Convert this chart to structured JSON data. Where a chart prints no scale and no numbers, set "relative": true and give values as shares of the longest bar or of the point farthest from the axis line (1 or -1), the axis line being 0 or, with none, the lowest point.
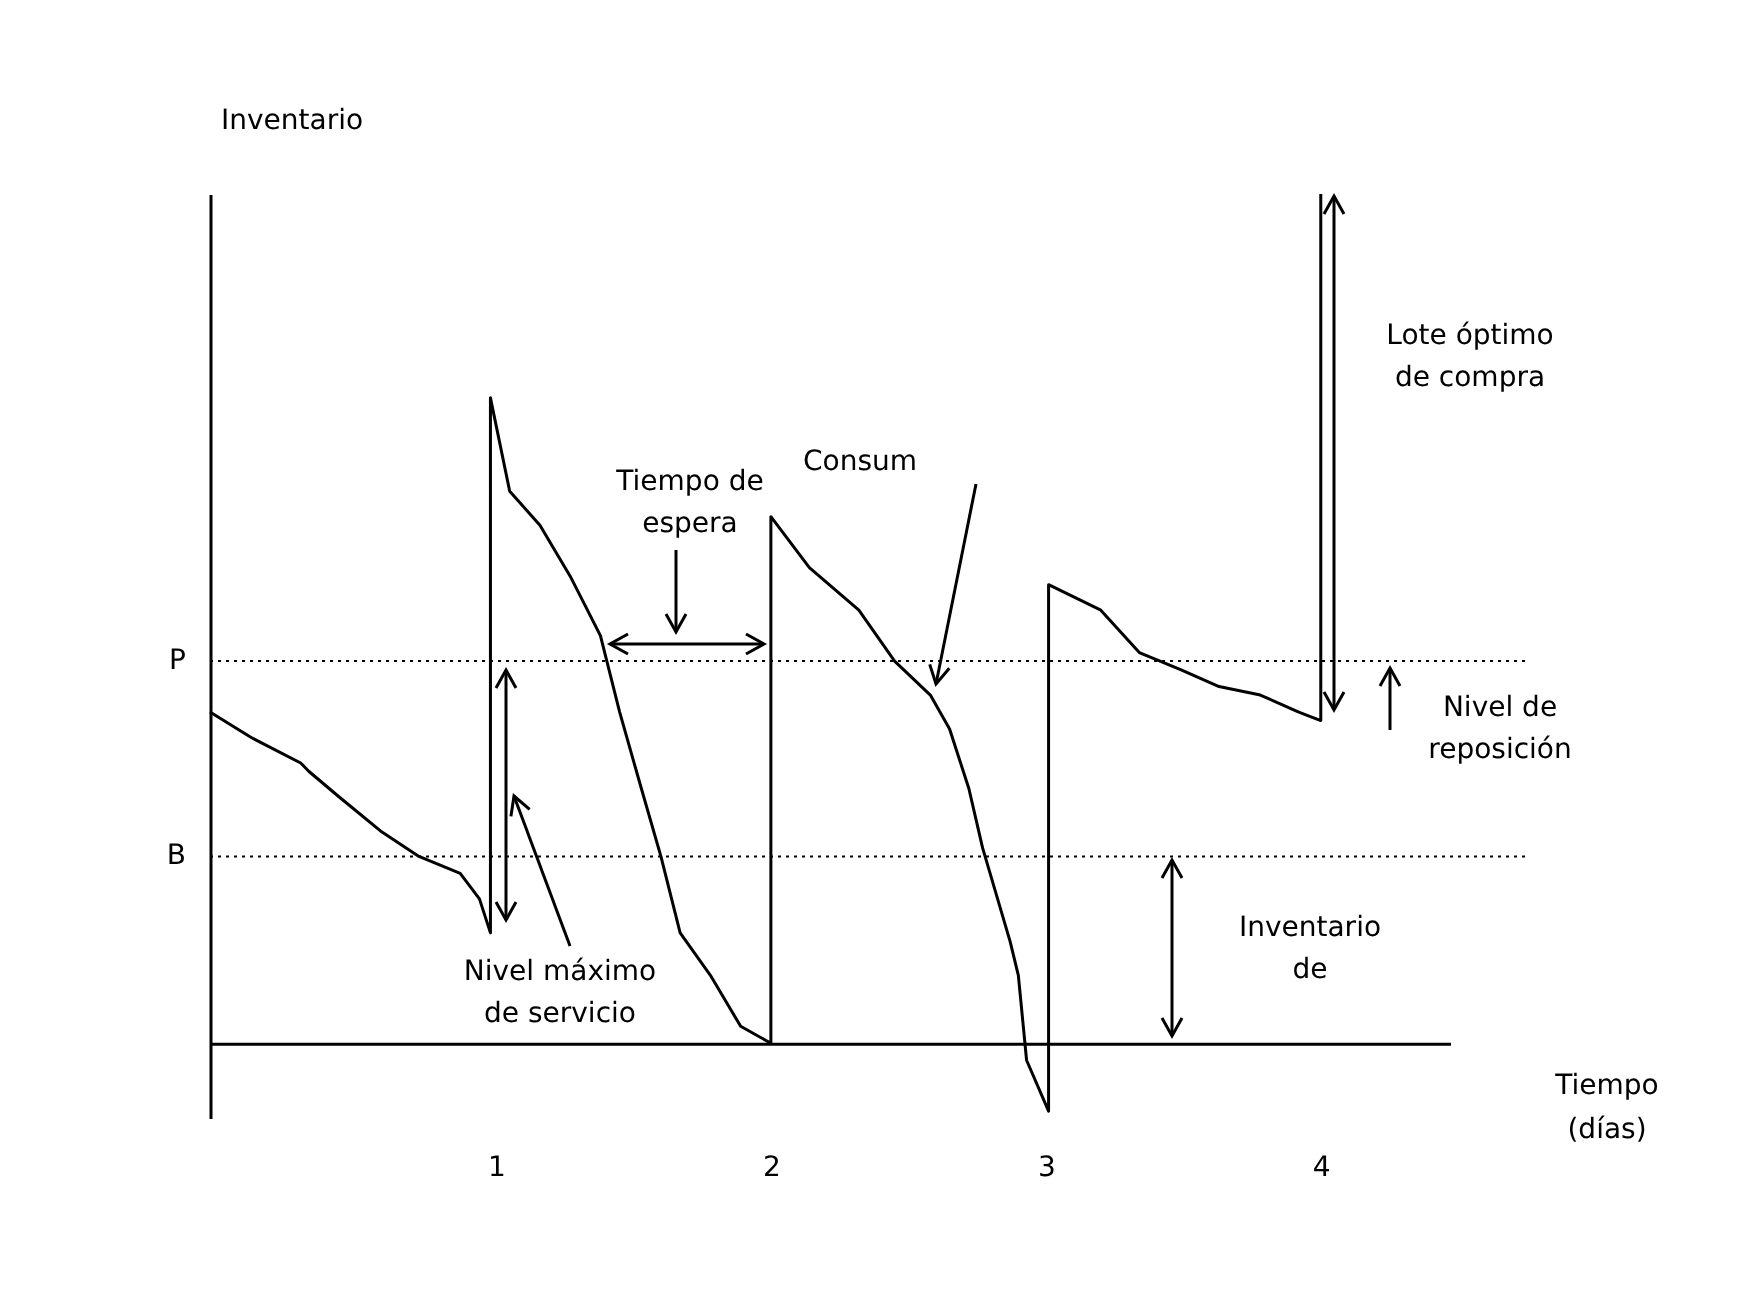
{
  "chart_data": {
    "type": "line",
    "relative": true,
    "ylabel": "Inventario",
    "xlabel": "Tiempo (días)",
    "xlim": [
      -0.04,
      4.47
    ],
    "xticks": [
      1,
      2,
      3,
      4
    ],
    "line_style": "solid",
    "x": [
      -0.04,
      0.11,
      0.29,
      0.32,
      0.43,
      0.58,
      0.72,
      0.87,
      0.94,
      0.98,
      0.98,
      1.05,
      1.16,
      1.27,
      1.38,
      1.45,
      1.52,
      1.6,
      1.67,
      1.78,
      1.89,
      2.0,
      2.0,
      2.14,
      2.32,
      2.45,
      2.58,
      2.65,
      2.72,
      2.77,
      2.87,
      2.9,
      2.93,
      3.01,
      3.01,
      3.2,
      3.34,
      3.49,
      3.63,
      3.78,
      3.92,
      4.0,
      4.0
    ],
    "series": [
      {
        "color": "#000000",
        "values": [
          0.39,
          0.36,
          0.33,
          0.32,
          0.29,
          0.25,
          0.22,
          0.2,
          0.17,
          0.13,
          0.76,
          0.65,
          0.61,
          0.55,
          0.48,
          0.39,
          0.31,
          0.22,
          0.13,
          0.08,
          0.02,
          0,
          0.62,
          0.56,
          0.51,
          0.45,
          0.41,
          0.37,
          0.3,
          0.23,
          0.12,
          0.08,
          -0.02,
          -0.08,
          0.54,
          0.51,
          0.46,
          0.44,
          0.42,
          0.41,
          0.39,
          0.38,
          1.0
        ]
      }
    ],
    "ref_lines": [
      {
        "axis": "y",
        "value": 0.45,
        "label": "P",
        "line_style": "dotted",
        "color": "#000000"
      },
      {
        "axis": "y",
        "value": 0.22,
        "label": "B",
        "line_style": "dotted",
        "color": "#000000"
      }
    ],
    "annotations": [
      "Tiempo de espera",
      "Consum",
      "Lote óptimo de compra",
      "Nivel de reposición",
      "Inventario de",
      "Nivel máximo de servicio"
    ]
  }
}
